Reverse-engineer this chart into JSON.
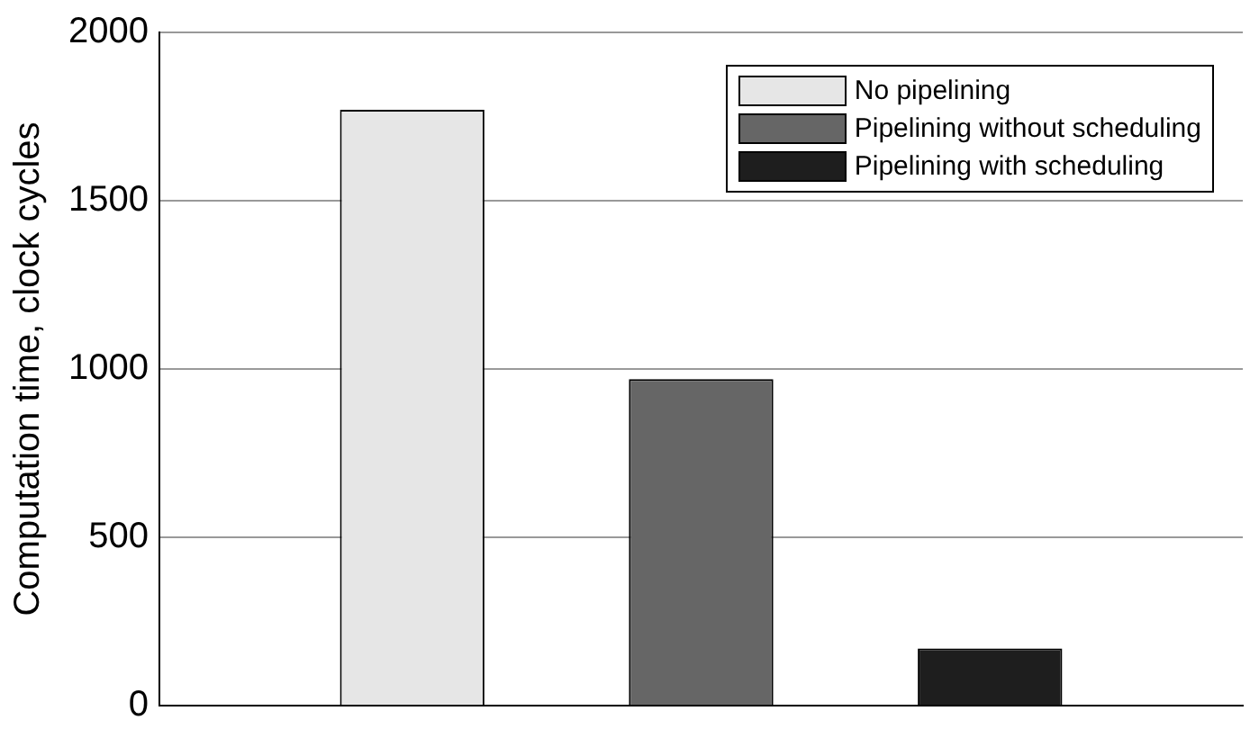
{
  "chart_data": {
    "type": "bar",
    "ylabel": "Computation time, clock cycles",
    "categories": [
      null
    ],
    "series": [
      {
        "name": "No pipelining",
        "color": "#e6e6e6",
        "values": [
          1770
        ]
      },
      {
        "name": "Pipelining without scheduling",
        "color": "#666666",
        "values": [
          970
        ]
      },
      {
        "name": "Pipelining with scheduling",
        "color": "#1e1e1e",
        "values": [
          170
        ]
      }
    ],
    "ylim": [
      0,
      2000
    ],
    "yticks": [
      0,
      500,
      1000,
      1500,
      2000
    ],
    "grid": "y",
    "legend": "top right",
    "tick_labels": "y"
  }
}
